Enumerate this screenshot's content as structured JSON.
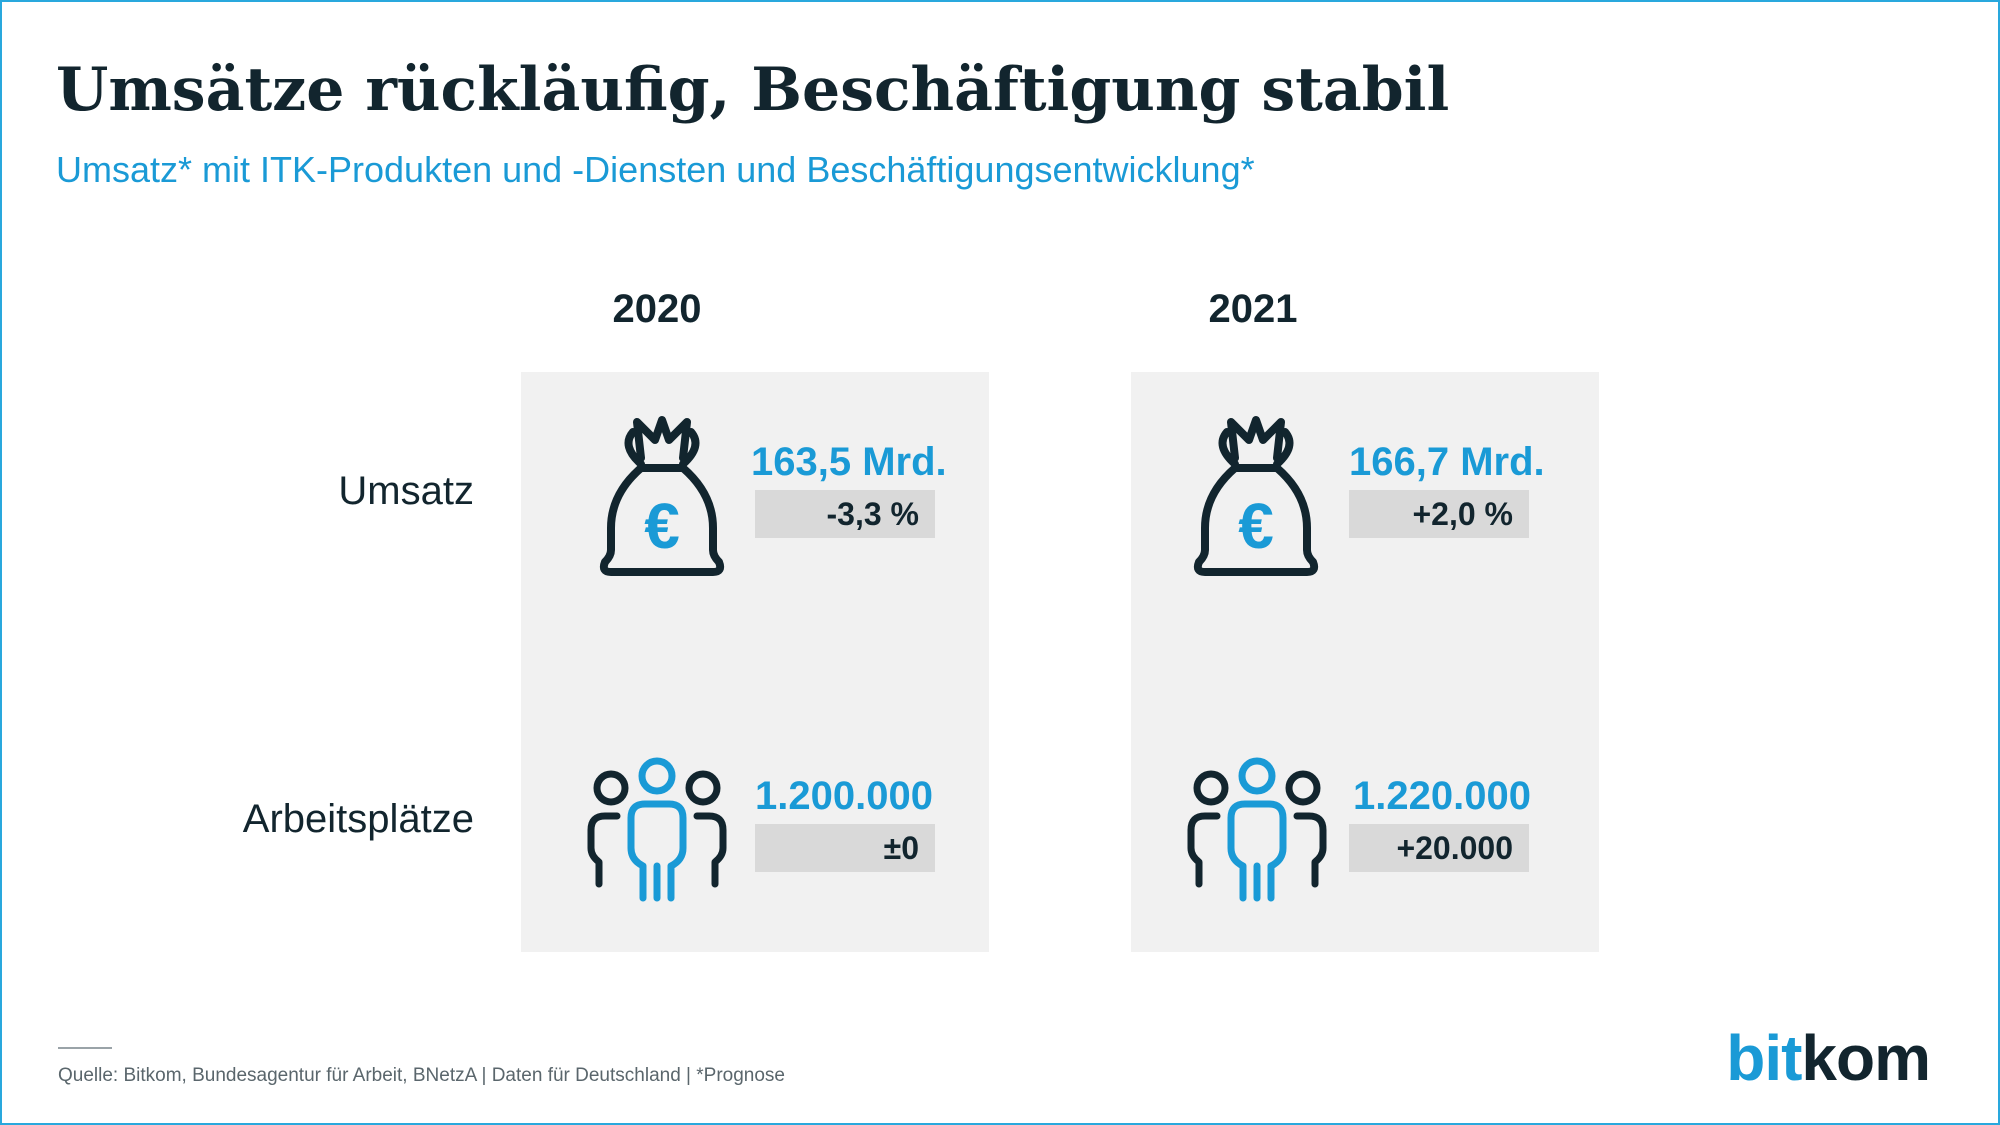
{
  "title": "Umsätze rückläufig, Beschäftigung stabil",
  "subtitle": "Umsatz* mit ITK-Produkten und -Diensten und Beschäftigungsentwicklung*",
  "rows": {
    "umsatz_label": "Umsatz",
    "jobs_label": "Arbeitsplätze"
  },
  "years": [
    {
      "year": "2020",
      "umsatz_value": "163,5 Mrd.",
      "umsatz_change": "-3,3 %",
      "jobs_value": "1.200.000",
      "jobs_change": "±0"
    },
    {
      "year": "2021",
      "umsatz_value": "166,7 Mrd.",
      "umsatz_change": "+2,0 %",
      "jobs_value": "1.220.000",
      "jobs_change": "+20.000"
    }
  ],
  "icons": {
    "money": "money-bag-euro-icon",
    "people": "people-group-icon",
    "euro_glyph": "€"
  },
  "colors": {
    "accent": "#1a9ad6",
    "dark": "#12252e",
    "panel": "#f1f1f1",
    "change_box": "#d9d9d9",
    "border": "#29a8dd"
  },
  "source": "Quelle: Bitkom, Bundesagentur für Arbeit, BNetzA | Daten für Deutschland | *Prognose",
  "logo": {
    "part1": "bit",
    "part2": "kom"
  }
}
